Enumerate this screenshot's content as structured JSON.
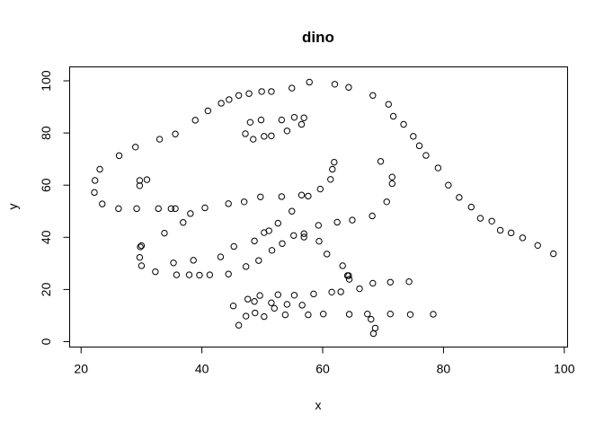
{
  "chart_data": {
    "type": "scatter",
    "title": "dino",
    "xlabel": "x",
    "ylabel": "y",
    "xlim": [
      19,
      100.5
    ],
    "ylim": [
      0,
      100
    ],
    "xticks": [
      20,
      40,
      60,
      80,
      100
    ],
    "yticks": [
      0,
      20,
      40,
      60,
      80,
      100
    ],
    "grid": false,
    "legend": "none",
    "marker": "open-circle",
    "color": "#000000",
    "points": [
      [
        22.3,
        61.8
      ],
      [
        22.2,
        57.2
      ],
      [
        23.1,
        66.1
      ],
      [
        23.5,
        52.8
      ],
      [
        26.2,
        51.0
      ],
      [
        26.3,
        71.3
      ],
      [
        29.0,
        74.6
      ],
      [
        29.2,
        51.0
      ],
      [
        29.7,
        61.8
      ],
      [
        29.7,
        59.8
      ],
      [
        30.9,
        62.1
      ],
      [
        33.0,
        77.6
      ],
      [
        32.8,
        51.0
      ],
      [
        34.9,
        51.0
      ],
      [
        35.6,
        79.6
      ],
      [
        35.6,
        51.0
      ],
      [
        38.1,
        49.1
      ],
      [
        36.9,
        45.7
      ],
      [
        33.8,
        41.6
      ],
      [
        30.0,
        36.8
      ],
      [
        29.8,
        36.3
      ],
      [
        29.7,
        32.3
      ],
      [
        30.0,
        29.1
      ],
      [
        32.3,
        26.8
      ],
      [
        35.3,
        30.2
      ],
      [
        35.8,
        25.6
      ],
      [
        37.9,
        25.6
      ],
      [
        39.6,
        25.5
      ],
      [
        41.3,
        25.6
      ],
      [
        38.6,
        31.2
      ],
      [
        40.5,
        51.3
      ],
      [
        43.1,
        32.5
      ],
      [
        44.4,
        25.9
      ],
      [
        45.3,
        36.5
      ],
      [
        44.4,
        52.9
      ],
      [
        47.3,
        28.8
      ],
      [
        47.0,
        53.6
      ],
      [
        48.7,
        38.6
      ],
      [
        49.7,
        55.5
      ],
      [
        50.3,
        41.8
      ],
      [
        51.1,
        42.5
      ],
      [
        52.6,
        45.4
      ],
      [
        51.6,
        35.0
      ],
      [
        49.4,
        31.1
      ],
      [
        53.3,
        37.6
      ],
      [
        54.9,
        50.0
      ],
      [
        55.2,
        40.7
      ],
      [
        53.2,
        55.6
      ],
      [
        56.5,
        56.2
      ],
      [
        57.6,
        55.8
      ],
      [
        56.9,
        41.4
      ],
      [
        56.9,
        40.1
      ],
      [
        58.5,
        18.3
      ],
      [
        59.4,
        38.5
      ],
      [
        59.3,
        44.6
      ],
      [
        59.6,
        58.5
      ],
      [
        61.3,
        62.2
      ],
      [
        61.6,
        66.1
      ],
      [
        61.9,
        68.8
      ],
      [
        62.4,
        45.8
      ],
      [
        60.7,
        33.6
      ],
      [
        63.3,
        29.1
      ],
      [
        64.3,
        25.3
      ],
      [
        64.4,
        23.9
      ],
      [
        64.9,
        46.6
      ],
      [
        66.1,
        20.3
      ],
      [
        68.2,
        48.2
      ],
      [
        70.6,
        53.6
      ],
      [
        71.5,
        63.1
      ],
      [
        71.5,
        60.6
      ],
      [
        69.6,
        69.1
      ],
      [
        68.3,
        94.4
      ],
      [
        70.9,
        91.0
      ],
      [
        71.7,
        86.4
      ],
      [
        73.4,
        83.3
      ],
      [
        75.0,
        78.7
      ],
      [
        76.0,
        75.1
      ],
      [
        77.1,
        71.4
      ],
      [
        79.1,
        66.6
      ],
      [
        80.8,
        60.0
      ],
      [
        82.6,
        55.3
      ],
      [
        84.6,
        51.6
      ],
      [
        86.1,
        47.3
      ],
      [
        88.0,
        46.2
      ],
      [
        89.4,
        42.7
      ],
      [
        91.2,
        41.7
      ],
      [
        93.1,
        39.8
      ],
      [
        95.6,
        36.9
      ],
      [
        98.2,
        33.7
      ],
      [
        64.3,
        97.5
      ],
      [
        62.0,
        98.7
      ],
      [
        57.8,
        99.5
      ],
      [
        54.9,
        97.2
      ],
      [
        51.5,
        95.9
      ],
      [
        49.9,
        95.9
      ],
      [
        47.8,
        95.1
      ],
      [
        46.1,
        94.4
      ],
      [
        44.5,
        92.8
      ],
      [
        43.2,
        91.4
      ],
      [
        41.0,
        88.5
      ],
      [
        38.9,
        84.9
      ],
      [
        48.5,
        77.6
      ],
      [
        47.2,
        79.7
      ],
      [
        48.0,
        84.1
      ],
      [
        49.8,
        85.0
      ],
      [
        50.3,
        78.7
      ],
      [
        51.5,
        78.9
      ],
      [
        53.2,
        85.0
      ],
      [
        54.1,
        80.8
      ],
      [
        55.3,
        86.0
      ],
      [
        56.9,
        85.8
      ],
      [
        56.5,
        83.3
      ],
      [
        45.2,
        13.7
      ],
      [
        46.1,
        6.3
      ],
      [
        47.3,
        9.8
      ],
      [
        48.7,
        15.4
      ],
      [
        48.8,
        11.0
      ],
      [
        49.6,
        17.7
      ],
      [
        50.3,
        9.6
      ],
      [
        51.5,
        14.9
      ],
      [
        52.0,
        12.8
      ],
      [
        52.6,
        18.0
      ],
      [
        53.8,
        10.3
      ],
      [
        54.1,
        14.3
      ],
      [
        55.3,
        17.8
      ],
      [
        56.6,
        14.0
      ],
      [
        57.6,
        10.3
      ],
      [
        60.1,
        10.6
      ],
      [
        61.5,
        19.0
      ],
      [
        63.0,
        19.1
      ],
      [
        64.4,
        10.5
      ],
      [
        67.4,
        10.6
      ],
      [
        68.0,
        8.6
      ],
      [
        68.3,
        22.4
      ],
      [
        68.7,
        5.2
      ],
      [
        68.4,
        3.1
      ],
      [
        71.2,
        22.8
      ],
      [
        71.2,
        10.6
      ],
      [
        74.3,
        23.0
      ],
      [
        74.5,
        10.4
      ],
      [
        78.3,
        10.5
      ],
      [
        47.6,
        16.3
      ],
      [
        64.1,
        25.3
      ]
    ]
  }
}
